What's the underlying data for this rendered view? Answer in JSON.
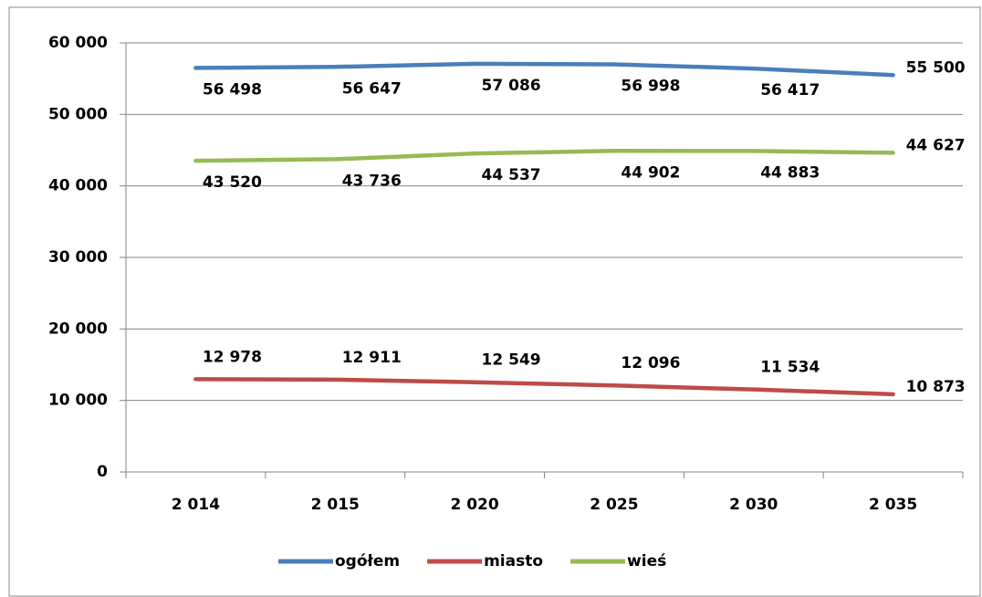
{
  "chart_data": {
    "type": "line",
    "categories": [
      "2 014",
      "2 015",
      "2 020",
      "2 025",
      "2 030",
      "2 035"
    ],
    "series": [
      {
        "name": "ogółem",
        "color": "#4a7ebb",
        "values": [
          56498,
          56647,
          57086,
          56998,
          56417,
          55500
        ],
        "value_labels": [
          "56 498",
          "56 647",
          "57 086",
          "56 998",
          "56 417",
          "55 500"
        ]
      },
      {
        "name": "miasto",
        "color": "#be4b48",
        "values": [
          12978,
          12911,
          12549,
          12096,
          11534,
          10873
        ],
        "value_labels": [
          "12 978",
          "12 911",
          "12 549",
          "12 096",
          "11 534",
          "10 873"
        ]
      },
      {
        "name": "wieś",
        "color": "#98b954",
        "values": [
          43520,
          43736,
          44537,
          44902,
          44883,
          44627
        ],
        "value_labels": [
          "43 520",
          "43 736",
          "44 537",
          "44 902",
          "44 883",
          "44 627"
        ]
      }
    ],
    "ylim": [
      0,
      60000
    ],
    "yticks": [
      0,
      {
        "value": 10000,
        "label": "10 000"
      },
      {
        "value": 20000,
        "label": "20 000"
      },
      {
        "value": 30000,
        "label": "30 000"
      },
      {
        "value": 40000,
        "label": "40 000"
      },
      {
        "value": 50000,
        "label": "50 000"
      },
      {
        "value": 60000,
        "label": "60 000"
      }
    ],
    "grid": true,
    "legend": "bottom"
  }
}
